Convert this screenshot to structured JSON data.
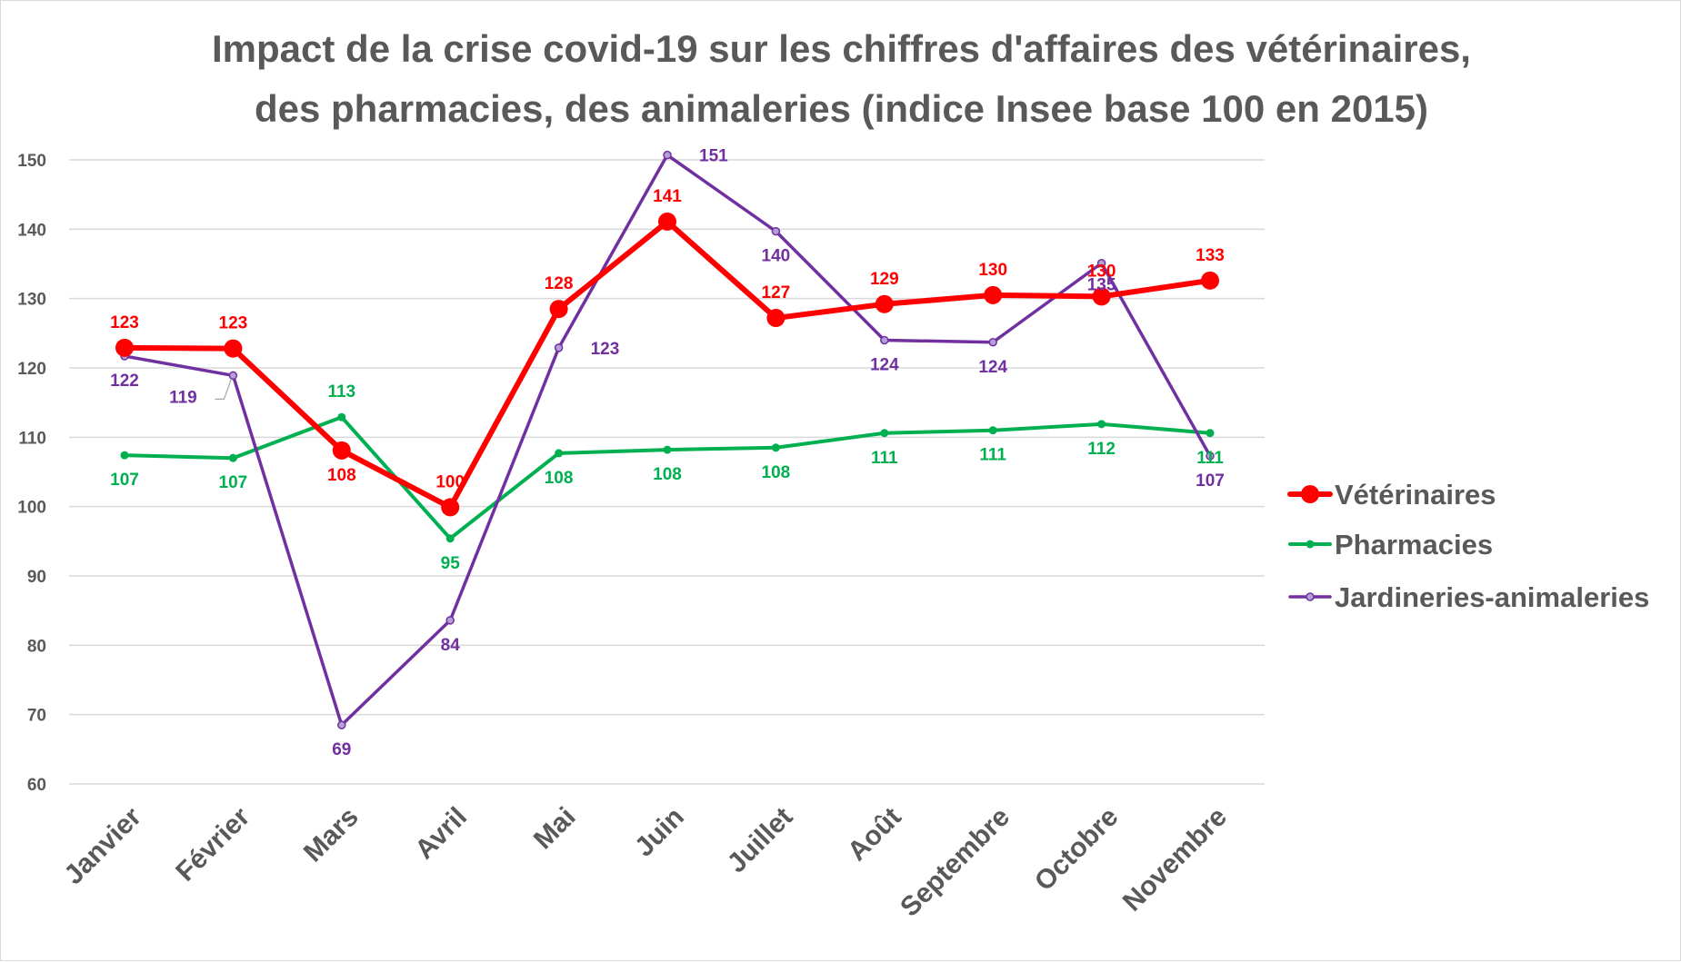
{
  "chart_data": {
    "type": "line",
    "title_lines": [
      "Impact de la crise covid-19 sur les chiffres d'affaires des vétérinaires,",
      "des pharmacies, des animaleries (indice Insee base 100 en 2015)"
    ],
    "categories": [
      "Janvier",
      "Février",
      "Mars",
      "Avril",
      "Mai",
      "Juin",
      "Juillet",
      "Août",
      "Septembre",
      "Octobre",
      "Novembre"
    ],
    "ylim": [
      60,
      150
    ],
    "yticks": [
      60,
      70,
      80,
      90,
      100,
      110,
      120,
      130,
      140,
      150
    ],
    "grid": true,
    "legend_position": "right",
    "series": [
      {
        "name": "Vétérinaires",
        "color": "#ff0000",
        "values": [
          122.9,
          122.8,
          108.1,
          99.9,
          128.5,
          141.1,
          127.2,
          129.2,
          130.5,
          130.3,
          132.6
        ],
        "labels": [
          "123",
          "123",
          "108",
          "100",
          "128",
          "141",
          "127",
          "129",
          "130",
          "130",
          "133"
        ]
      },
      {
        "name": "Pharmacies",
        "color": "#00b050",
        "values": [
          107.4,
          107.0,
          112.9,
          95.4,
          107.7,
          108.2,
          108.5,
          110.6,
          111.0,
          111.9,
          110.6
        ],
        "labels": [
          "107",
          "107",
          "113",
          "95",
          "108",
          "108",
          "108",
          "111",
          "111",
          "112",
          "111"
        ]
      },
      {
        "name": "Jardineries-animaleries",
        "color": "#7030a0",
        "values": [
          121.7,
          118.9,
          68.5,
          83.6,
          122.9,
          150.7,
          139.7,
          124.0,
          123.7,
          135.1,
          107.3
        ],
        "labels": [
          "122",
          "119",
          "69",
          "84",
          "123",
          "151",
          "140",
          "124",
          "124",
          "135",
          "107"
        ]
      }
    ]
  }
}
